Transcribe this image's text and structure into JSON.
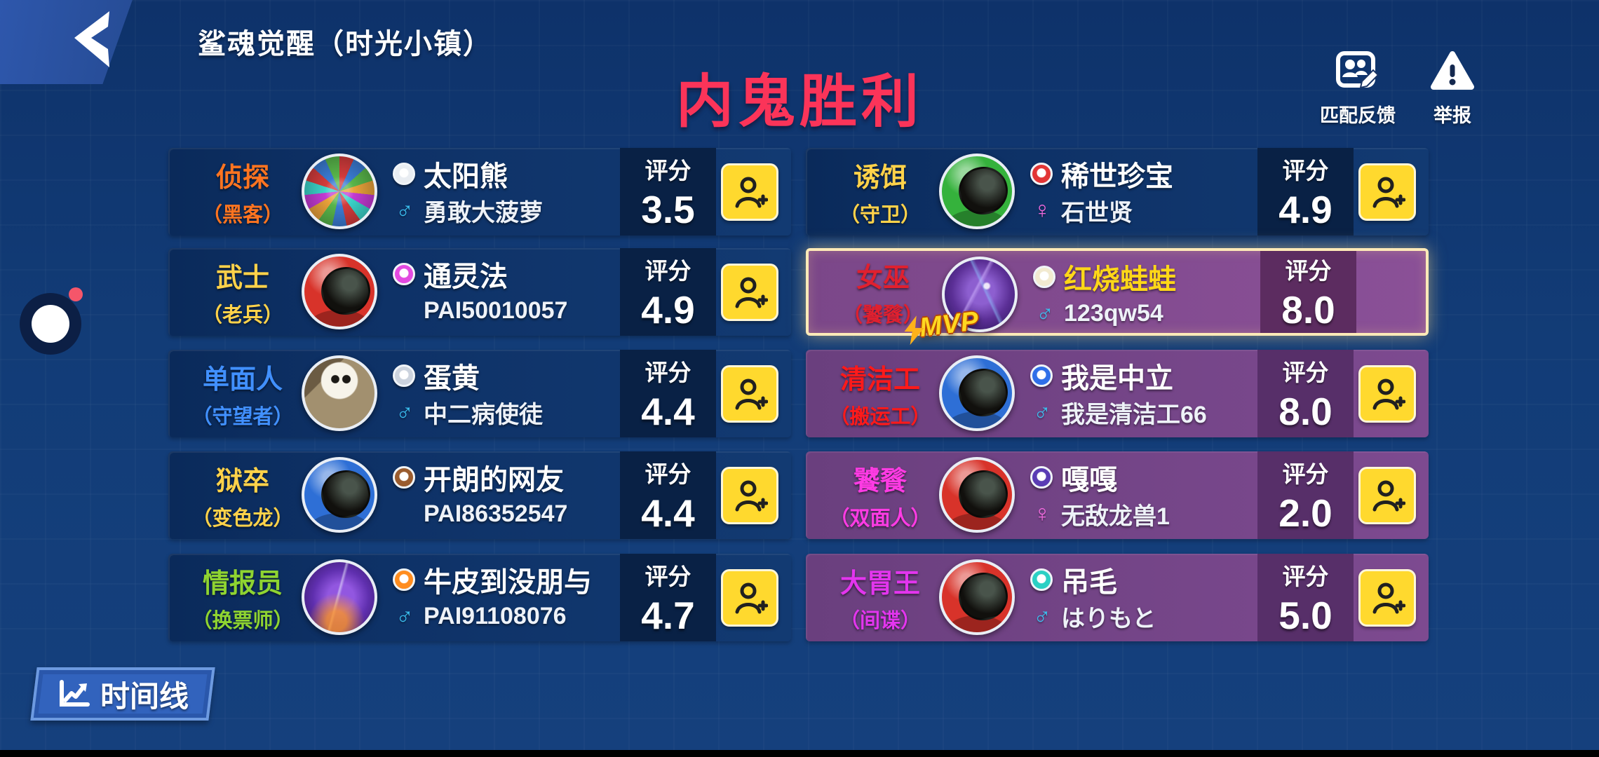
{
  "header": {
    "title": "鲨魂觉醒（时光小镇）",
    "result_title": "内鬼胜利",
    "result_color": "#fb3459",
    "actions": [
      {
        "id": "match-feedback",
        "label": "匹配反馈",
        "icon": "feedback-persons-pencil-icon"
      },
      {
        "id": "report",
        "label": "举报",
        "icon": "warning-triangle-icon"
      }
    ]
  },
  "rating_label": "评分",
  "mvp_label": "MVP",
  "icons": {
    "male": "♂",
    "female": "♀"
  },
  "colors": {
    "crew_row": "#0e3166",
    "impostor_row": "#7d4a90",
    "add_friend_button": "#ffd92e",
    "mvp_border": "#ffeab8"
  },
  "players": {
    "left": [
      {
        "role": "侦探",
        "sub_role": "（黑客）",
        "role_color": "#ff7420",
        "name": "太阳熊",
        "name_color": "#ffffff",
        "cam_color": "#e9edf2",
        "gender": "male",
        "subtitle": "勇敢大菠萝",
        "rating": "3.5",
        "theme": "navy",
        "add_friend": true,
        "mvp": false,
        "avatar": {
          "type": "collage"
        }
      },
      {
        "role": "武士",
        "sub_role": "（老兵）",
        "role_color": "#ffd24a",
        "name": "通灵法",
        "name_color": "#ffffff",
        "cam_color": "#e34ae0",
        "gender": null,
        "subtitle": "PAI50010057",
        "rating": "4.9",
        "theme": "navy",
        "add_friend": true,
        "mvp": false,
        "avatar": {
          "type": "astronaut",
          "color": "#d8332a"
        }
      },
      {
        "role": "单面人",
        "sub_role": "（守望者）",
        "role_color": "#4190ff",
        "name": "蛋黄",
        "name_color": "#ffffff",
        "cam_color": "#ccd3de",
        "gender": "male",
        "subtitle": "中二病使徒",
        "rating": "4.4",
        "theme": "navy",
        "add_friend": true,
        "mvp": false,
        "avatar": {
          "type": "skeleton"
        }
      },
      {
        "role": "狱卒",
        "sub_role": "（变色龙）",
        "role_color": "#ffd24a",
        "name": "开朗的网友",
        "name_color": "#ffffff",
        "cam_color": "#9a5c2e",
        "gender": null,
        "subtitle": "PAI86352547",
        "rating": "4.4",
        "theme": "navy",
        "add_friend": true,
        "mvp": false,
        "avatar": {
          "type": "astronaut",
          "color": "#2e6fd6"
        }
      },
      {
        "role": "情报员",
        "sub_role": "（换票师）",
        "role_color": "#8fd431",
        "name": "牛皮到没朋与",
        "name_color": "#ffffff",
        "cam_color": "#ff8d1f",
        "gender": "male",
        "subtitle": "PAI91108076",
        "rating": "4.7",
        "theme": "navy",
        "add_friend": true,
        "mvp": false,
        "avatar": {
          "type": "dragon"
        }
      }
    ],
    "right": [
      {
        "role": "诱饵",
        "sub_role": "（守卫）",
        "role_color": "#ffd24a",
        "name": "稀世珍宝",
        "name_color": "#ffffff",
        "cam_color": "#e23535",
        "gender": "female",
        "subtitle": "石世贤",
        "rating": "4.9",
        "theme": "navy",
        "add_friend": true,
        "mvp": false,
        "avatar": {
          "type": "astronaut",
          "color": "#35b23c"
        }
      },
      {
        "role": "女巫",
        "sub_role": "（饕餮）",
        "role_color": "#e0202f",
        "name": "红烧蛙蛙",
        "name_color": "#ffd718",
        "cam_color": "#f2ead0",
        "gender": "male",
        "subtitle": "123qw54",
        "rating": "8.0",
        "theme": "mvp",
        "add_friend": false,
        "mvp": true,
        "avatar": {
          "type": "scene"
        }
      },
      {
        "role": "清洁工",
        "sub_role": "（搬运工）",
        "role_color": "#ff1a1a",
        "name": "我是中立",
        "name_color": "#ffffff",
        "cam_color": "#2f6fe8",
        "gender": "male",
        "subtitle": "我是清洁工66",
        "rating": "8.0",
        "theme": "purple",
        "add_friend": true,
        "mvp": false,
        "avatar": {
          "type": "astronaut",
          "color": "#2e6fd6"
        }
      },
      {
        "role": "饕餮",
        "sub_role": "（双面人）",
        "role_color": "#ff3be4",
        "name": "嘎嘎",
        "name_color": "#ffffff",
        "cam_color": "#5a3cb4",
        "gender": "female",
        "subtitle": "无敌龙兽1",
        "rating": "2.0",
        "theme": "purple",
        "add_friend": true,
        "mvp": false,
        "avatar": {
          "type": "astronaut",
          "color": "#d8332a"
        }
      },
      {
        "role": "大胃王",
        "sub_role": "（间谍）",
        "role_color": "#e335ee",
        "name": "吊毛",
        "name_color": "#ffffff",
        "cam_color": "#2bd0c4",
        "gender": "male",
        "subtitle": "はりもと",
        "rating": "5.0",
        "theme": "purple",
        "add_friend": true,
        "mvp": false,
        "avatar": {
          "type": "astronaut",
          "color": "#d8332a"
        }
      }
    ]
  },
  "footer": {
    "timeline_label": "时间线"
  }
}
